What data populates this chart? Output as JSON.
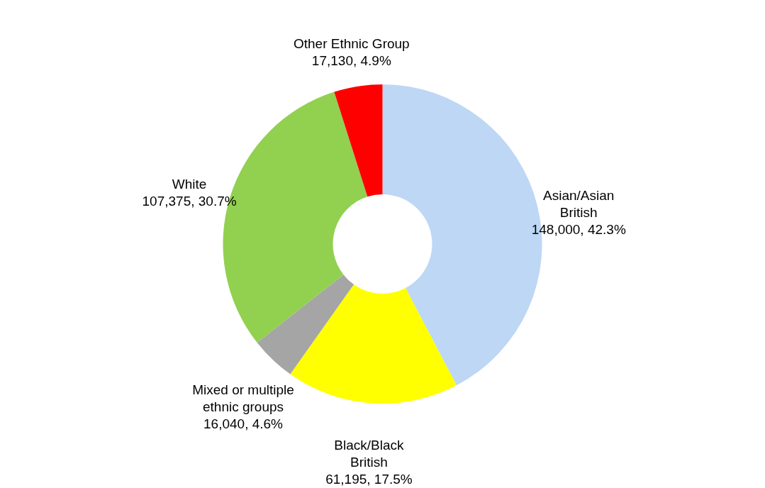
{
  "chart_data": {
    "type": "donut",
    "categories": [
      "Asian/Asian British",
      "Black/Black British",
      "Mixed or multiple ethnic groups",
      "White",
      "Other Ethnic Group"
    ],
    "values": [
      148000,
      61195,
      16040,
      107375,
      17130
    ],
    "colors": [
      "#bdd7f5",
      "#ffff00",
      "#a5a5a5",
      "#92d050",
      "#ff0000"
    ],
    "value_labels": [
      "148,000, 42.3%",
      "61,195, 17.5%",
      "16,040, 4.6%",
      "107,375, 30.7%",
      "17,130, 4.9%"
    ],
    "legend": false
  }
}
